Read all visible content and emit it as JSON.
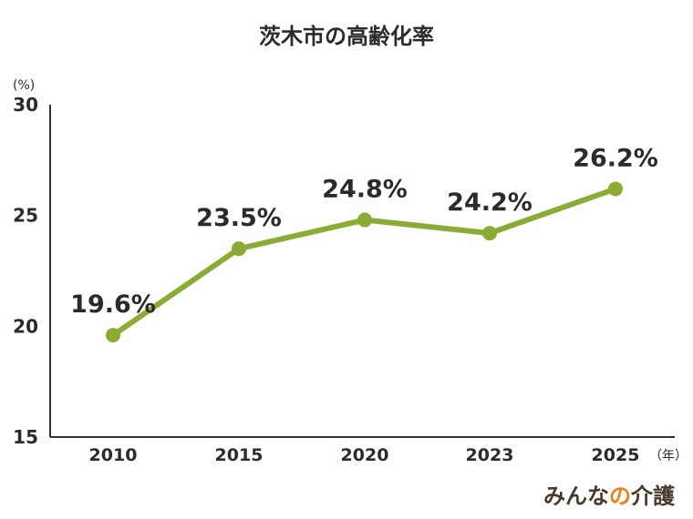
{
  "chart_data": {
    "type": "line",
    "title": "茨木市の高齢化率",
    "categories": [
      "2010",
      "2015",
      "2020",
      "2023",
      "2025"
    ],
    "values": [
      19.6,
      23.5,
      24.8,
      24.2,
      26.2
    ],
    "value_labels": [
      "19.6%",
      "23.5%",
      "24.8%",
      "24.2%",
      "26.2%"
    ],
    "ylim": [
      15,
      30
    ],
    "yticks": [
      "15",
      "20",
      "25",
      "30"
    ],
    "yunit": "(%)",
    "xunit": "（年）",
    "grid": false,
    "legend": "none",
    "line_color": "#8aab34"
  },
  "brand": {
    "text_main": "みんな",
    "text_accent": "の",
    "text_end": "介護"
  }
}
